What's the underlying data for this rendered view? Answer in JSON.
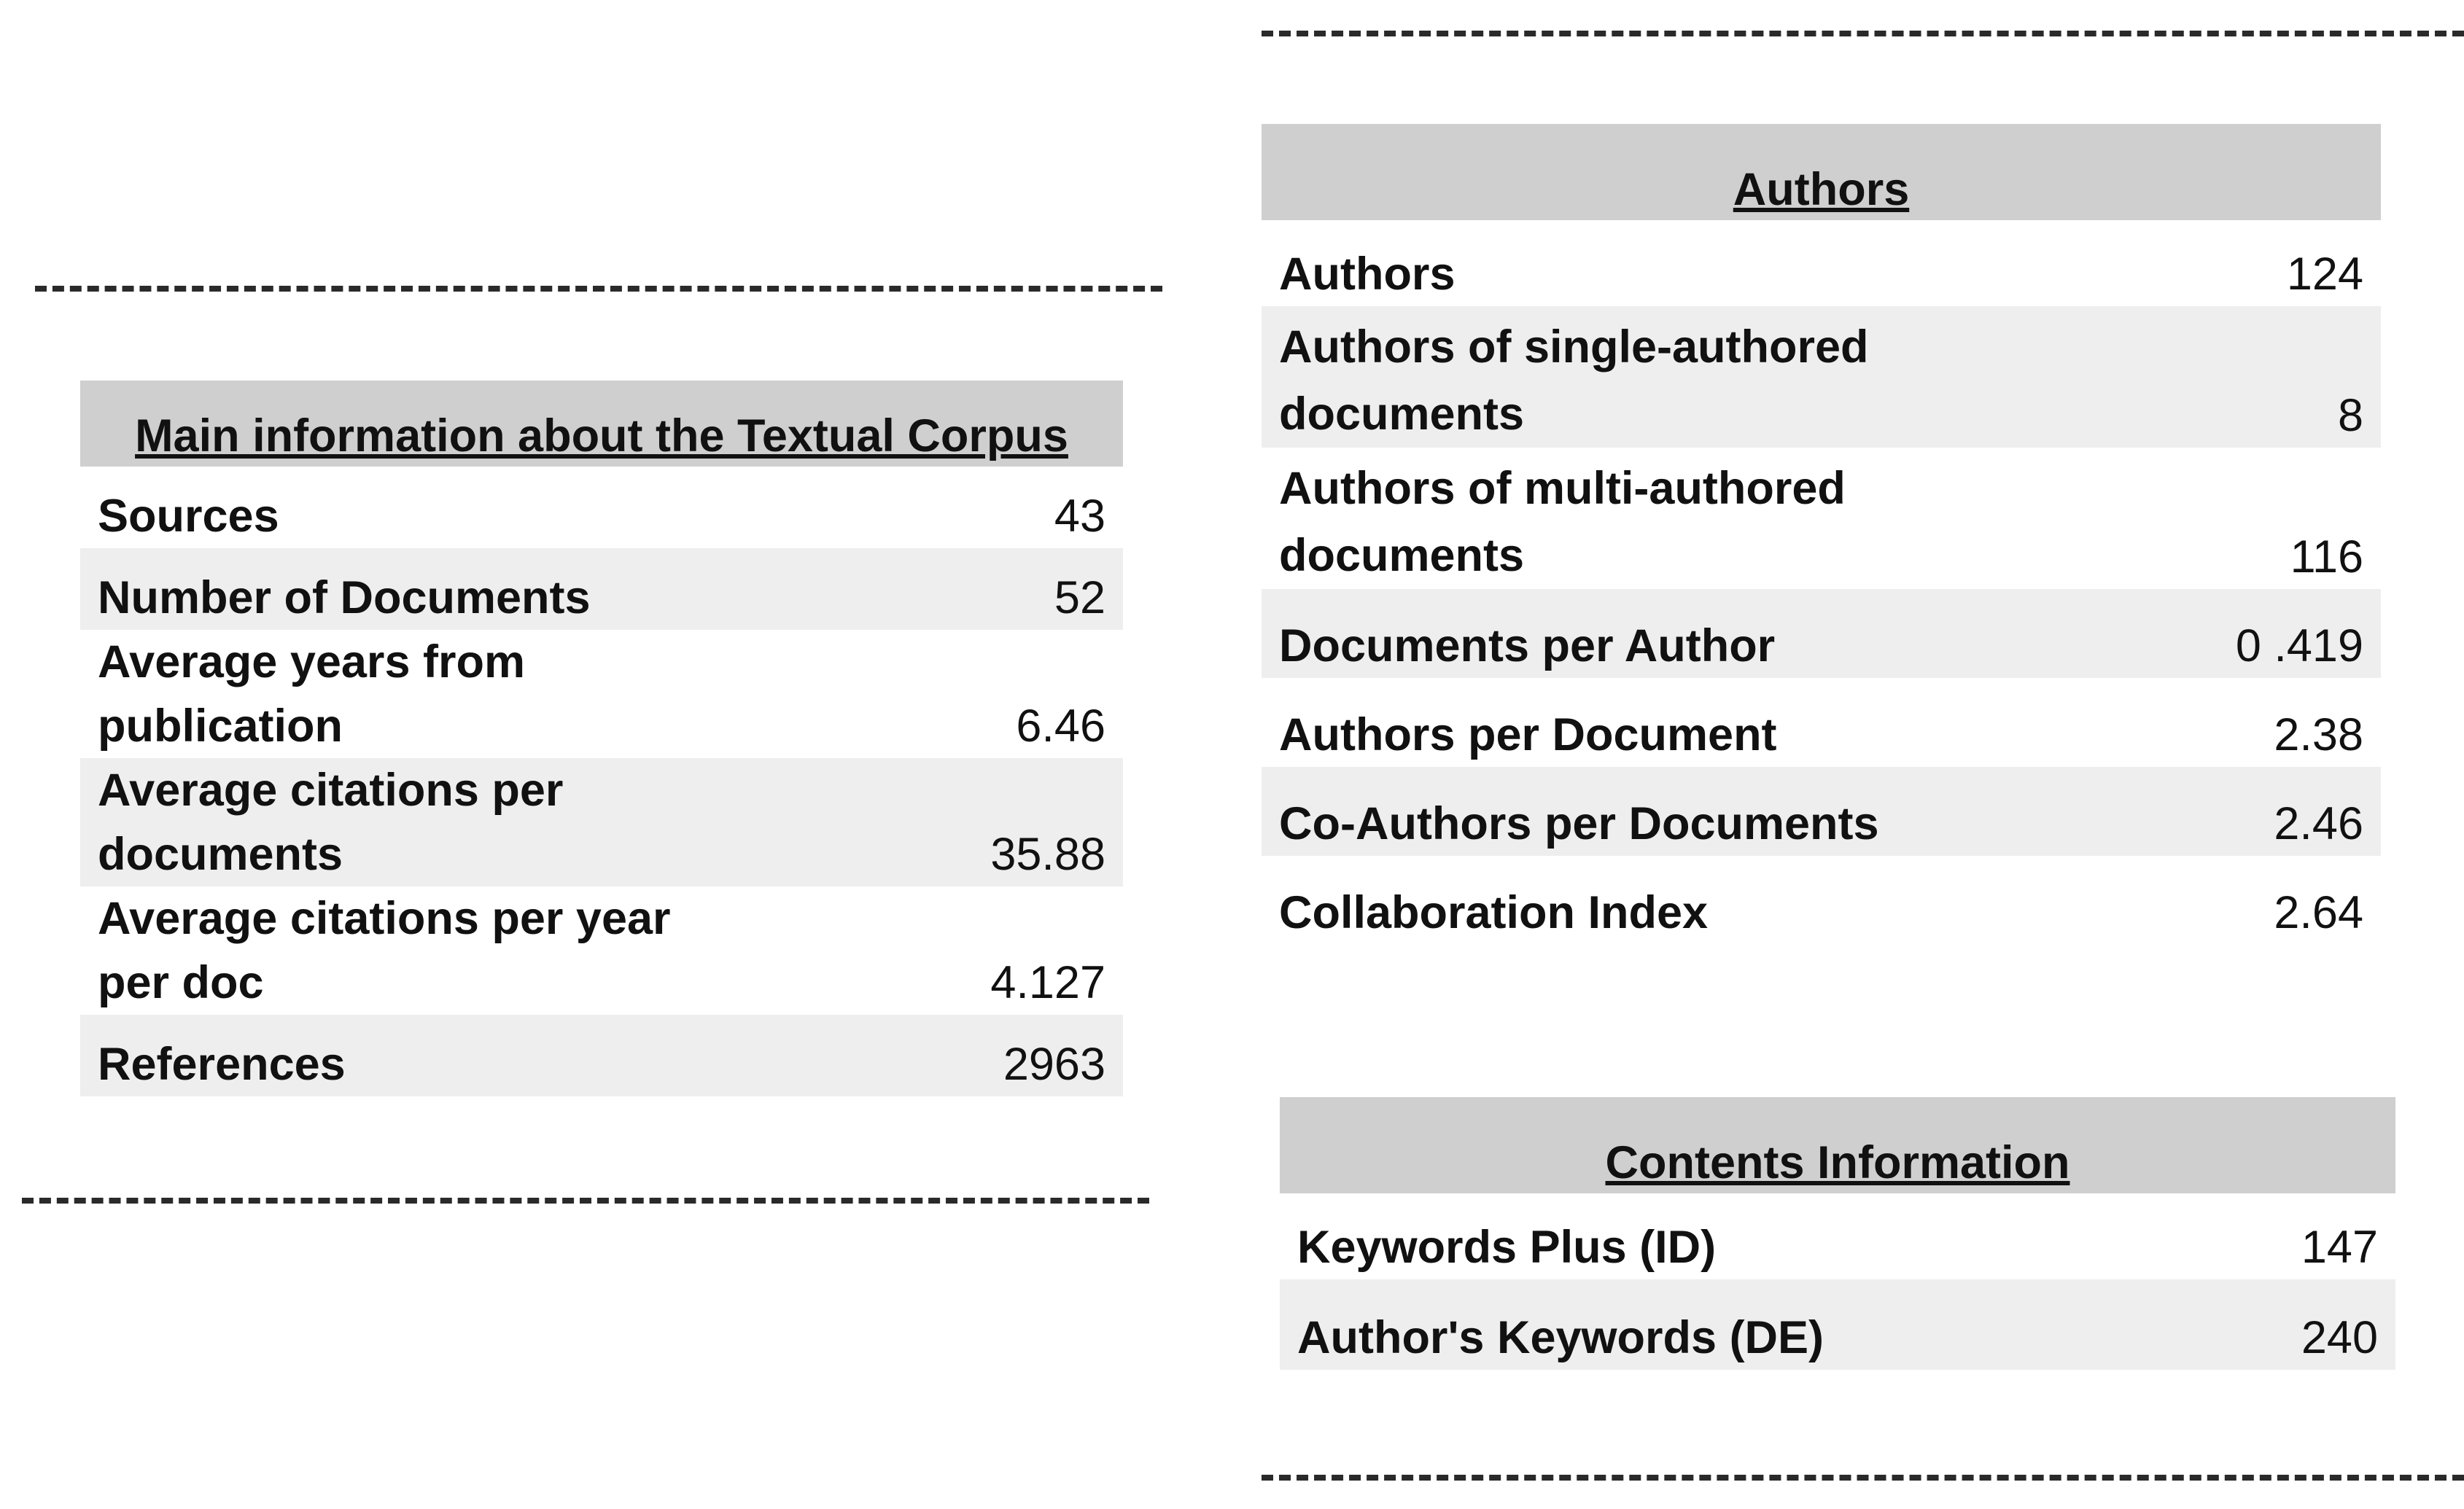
{
  "main_info": {
    "title": "Main information about the Textual Corpus",
    "rows": [
      {
        "label": "Sources",
        "value": "43"
      },
      {
        "label": "Number of Documents",
        "value": "52"
      },
      {
        "label": "Average years from publication",
        "label_lines": [
          "Average years from",
          "publication"
        ],
        "value": "6.46"
      },
      {
        "label": "Average citations per documents",
        "label_lines": [
          "Average citations per",
          "documents"
        ],
        "value": "35.88"
      },
      {
        "label": "Average citations per year per doc",
        "label_lines": [
          "Average citations per year",
          "per doc"
        ],
        "value": "4.127"
      },
      {
        "label": "References",
        "value": "2963"
      }
    ]
  },
  "authors": {
    "title": "Authors",
    "rows": [
      {
        "label": "Authors",
        "value": "124"
      },
      {
        "label": "Authors of single-authored documents",
        "label_lines": [
          "Authors of single-authored",
          "documents"
        ],
        "value": "8"
      },
      {
        "label": "Authors of multi-authored documents",
        "label_lines": [
          "Authors of multi-authored",
          "documents"
        ],
        "value": "116"
      },
      {
        "label": "Documents per Author",
        "value": "0 .419"
      },
      {
        "label": "Authors per Document",
        "value": "2.38"
      },
      {
        "label": "Co-Authors per Documents",
        "value": "2.46"
      },
      {
        "label": "Collaboration Index",
        "value": "2.64"
      }
    ]
  },
  "contents": {
    "title": "Contents Information",
    "rows": [
      {
        "label": "Keywords Plus (ID)",
        "value": "147"
      },
      {
        "label": "Author's Keywords (DE)",
        "value": "240"
      }
    ]
  }
}
